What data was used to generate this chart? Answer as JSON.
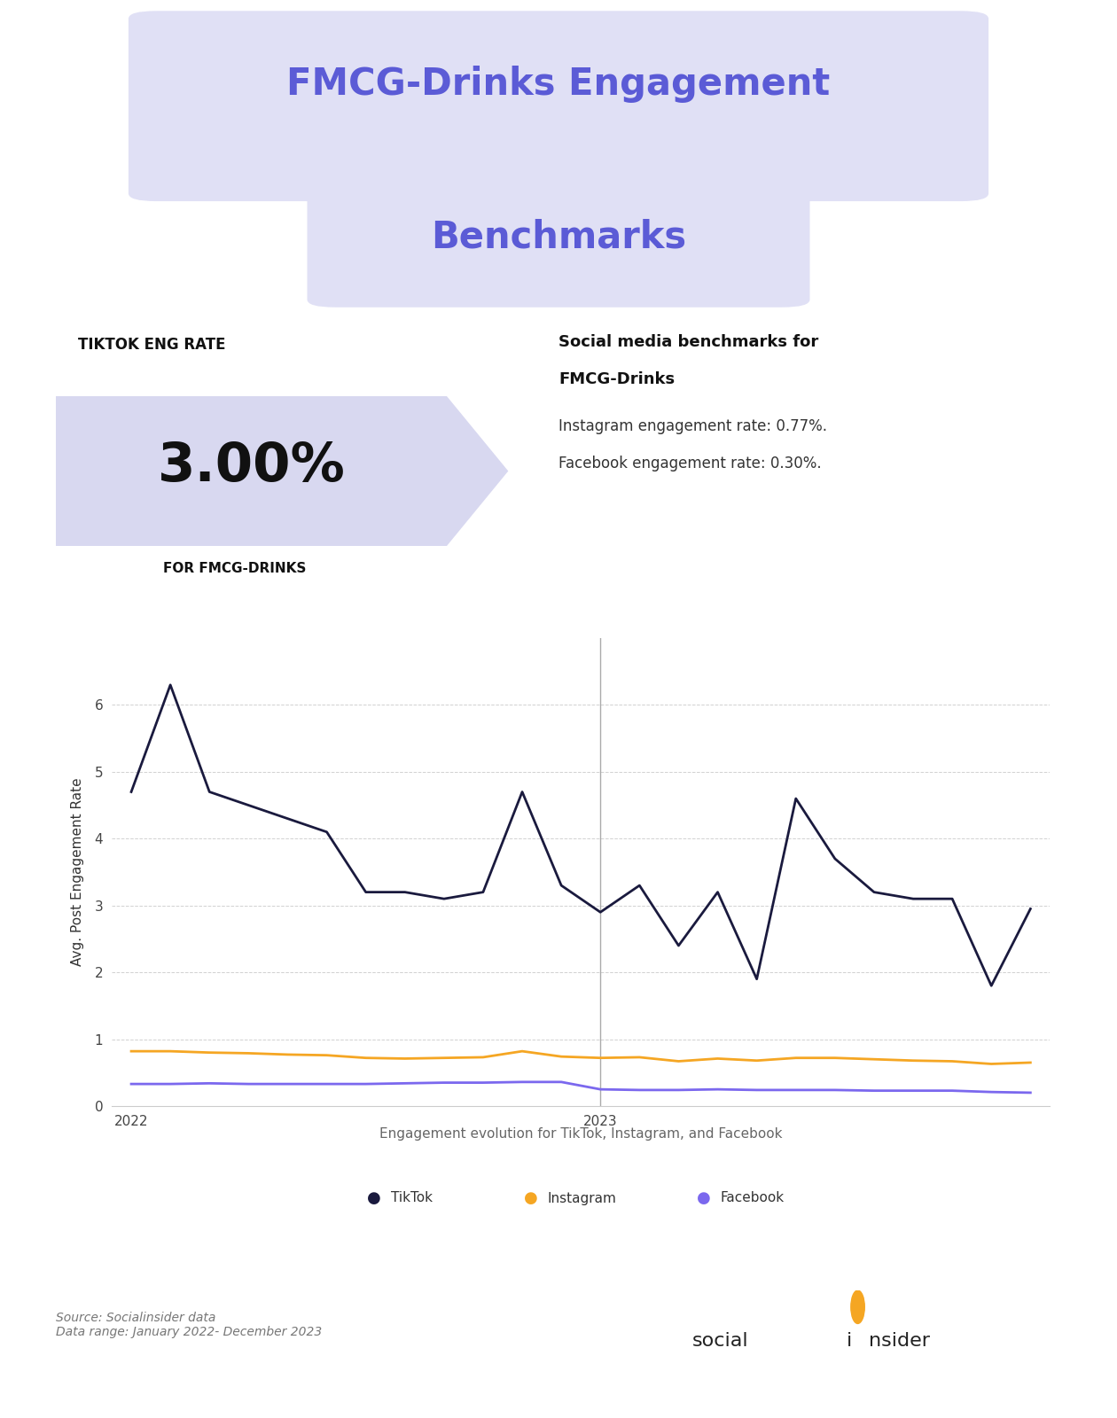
{
  "title_line1": "FMCG-Drinks Engagement",
  "title_line2": "Benchmarks",
  "title_color": "#5b5bd6",
  "title_bg_color": "#e0e0f5",
  "tiktok_label": "TIKTOK ENG RATE",
  "tiktok_value": "3.00%",
  "tiktok_sublabel": "FOR FMCG-DRINKS",
  "tiktok_box_color": "#d8d8f0",
  "social_title_bold": "Social media benchmarks for\nFMCG-Drinks",
  "social_line1": "Instagram engagement rate: 0.77%.",
  "social_line2": "Facebook engagement rate: 0.30%.",
  "ylabel": "Avg. Post Engagement Rate",
  "xlabel_caption": "Engagement evolution for TikTok, Instagram, and Facebook",
  "source_text": "Source: Socialinsider data\nData range: January 2022- December 2023",
  "bg_color": "#ffffff",
  "tiktok_data": [
    4.7,
    6.3,
    4.7,
    4.5,
    4.3,
    4.1,
    3.2,
    3.2,
    3.1,
    3.2,
    4.7,
    3.3,
    2.9,
    3.3,
    2.4,
    3.2,
    1.9,
    4.6,
    3.7,
    3.2,
    3.1,
    3.1,
    1.8,
    2.95
  ],
  "instagram_data": [
    0.82,
    0.82,
    0.8,
    0.79,
    0.77,
    0.76,
    0.72,
    0.71,
    0.72,
    0.73,
    0.82,
    0.74,
    0.72,
    0.73,
    0.67,
    0.71,
    0.68,
    0.72,
    0.72,
    0.7,
    0.68,
    0.67,
    0.63,
    0.65
  ],
  "facebook_data": [
    0.33,
    0.33,
    0.34,
    0.33,
    0.33,
    0.33,
    0.33,
    0.34,
    0.35,
    0.35,
    0.36,
    0.36,
    0.25,
    0.24,
    0.24,
    0.25,
    0.24,
    0.24,
    0.24,
    0.23,
    0.23,
    0.23,
    0.21,
    0.2
  ],
  "tiktok_color": "#1a1a3e",
  "instagram_color": "#f5a623",
  "facebook_color": "#7b68ee",
  "grid_color": "#cccccc",
  "vline_color": "#aaaaaa",
  "ylim": [
    0,
    7
  ],
  "yticks": [
    0,
    1,
    2,
    3,
    4,
    5,
    6
  ]
}
